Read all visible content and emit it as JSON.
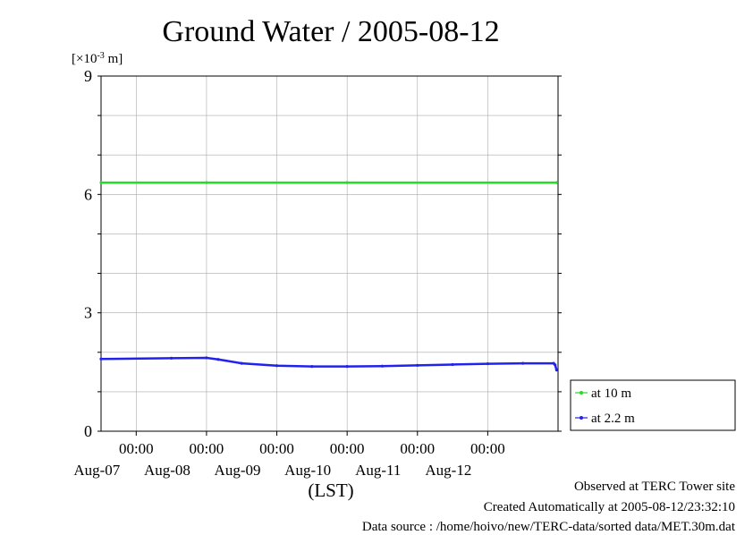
{
  "chart_data": {
    "type": "line",
    "title": "Ground Water / 2005-08-12",
    "ylabel": "[×10",
    "ylabel_exp": "-3",
    "ylabel_unit": " m]",
    "xlabel": "(LST)",
    "ylim": [
      0,
      9
    ],
    "yticks": [
      0,
      3,
      6,
      9
    ],
    "xlim": [
      "2005-08-06T12:00",
      "2005-08-13T00:00"
    ],
    "xticks": [
      {
        "time": "2005-08-07T00:00",
        "time_label": "00:00",
        "date_label": "Aug-07"
      },
      {
        "time": "2005-08-08T00:00",
        "time_label": "00:00",
        "date_label": "Aug-08"
      },
      {
        "time": "2005-08-09T00:00",
        "time_label": "00:00",
        "date_label": "Aug-09"
      },
      {
        "time": "2005-08-10T00:00",
        "time_label": "00:00",
        "date_label": "Aug-10"
      },
      {
        "time": "2005-08-11T00:00",
        "time_label": "00:00",
        "date_label": "Aug-11"
      },
      {
        "time": "2005-08-12T00:00",
        "time_label": "00:00",
        "date_label": "Aug-12"
      }
    ],
    "grid": true,
    "legend_position": "right-bottom-outside",
    "series": [
      {
        "name": "at 10 m",
        "color": "#22dd22",
        "points": [
          [
            "2005-08-06T12:00",
            6.3
          ],
          [
            "2005-08-08T00:00",
            6.3
          ],
          [
            "2005-08-10T00:00",
            6.3
          ],
          [
            "2005-08-12T23:30",
            6.3
          ]
        ]
      },
      {
        "name": "at 2.2 m",
        "color": "#2222ee",
        "points": [
          [
            "2005-08-06T12:00",
            1.83
          ],
          [
            "2005-08-07T12:00",
            1.85
          ],
          [
            "2005-08-08T00:00",
            1.86
          ],
          [
            "2005-08-08T04:00",
            1.82
          ],
          [
            "2005-08-08T12:00",
            1.72
          ],
          [
            "2005-08-09T00:00",
            1.66
          ],
          [
            "2005-08-09T12:00",
            1.64
          ],
          [
            "2005-08-10T00:00",
            1.64
          ],
          [
            "2005-08-10T12:00",
            1.65
          ],
          [
            "2005-08-11T00:00",
            1.67
          ],
          [
            "2005-08-11T12:00",
            1.69
          ],
          [
            "2005-08-12T00:00",
            1.71
          ],
          [
            "2005-08-12T12:00",
            1.72
          ],
          [
            "2005-08-12T22:30",
            1.72
          ],
          [
            "2005-08-12T23:00",
            1.68
          ],
          [
            "2005-08-12T23:30",
            1.55
          ]
        ]
      }
    ]
  },
  "footer": {
    "observed": "Observed at TERC Tower site",
    "created": "Created Automatically at 2005-08-12/23:32:10",
    "source": "Data source : /home/hoivo/new/TERC-data/sorted  data/MET.30m.dat"
  }
}
